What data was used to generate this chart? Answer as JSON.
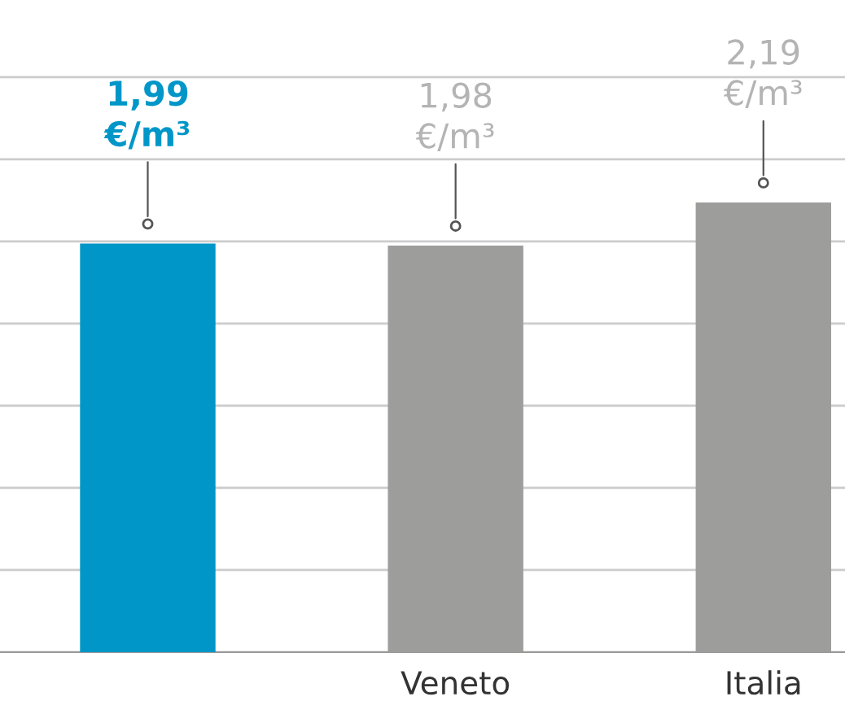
{
  "chart_data": {
    "type": "bar",
    "categories": [
      null,
      "Veneto",
      "Italia"
    ],
    "values": [
      1.99,
      1.98,
      2.19
    ],
    "colors": [
      "#0096c8",
      "#9d9d9c",
      "#9d9d9c"
    ],
    "value_labels": [
      "1,99\n€/m³",
      "1,98\n€/m³",
      "2,19\n€/m³"
    ],
    "grid": "y"
  }
}
